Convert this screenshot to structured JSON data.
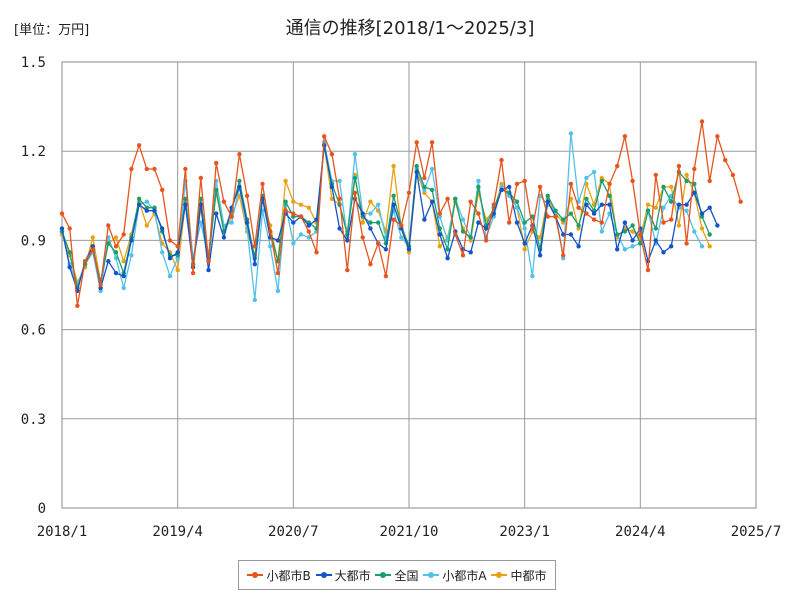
{
  "chart_data": {
    "type": "line",
    "title": "通信の推移[2018/1～2025/3]",
    "unit_label": "[単位：万円]",
    "xlabel": "",
    "ylabel": "",
    "ylim": [
      0,
      1.5
    ],
    "y_ticks": [
      "0",
      "0.3",
      "0.6",
      "0.9",
      "1.2",
      "1.5"
    ],
    "x_ticks": [
      "2018/1",
      "2019/4",
      "2020/7",
      "2021/10",
      "2023/1",
      "2024/4",
      "2025/7"
    ],
    "grid": true,
    "legend_position": "bottom",
    "x_start": "2018/1",
    "x_end": "2025/7",
    "series": [
      {
        "name": "小都市B",
        "color": "#e8541c",
        "values": [
          0.99,
          0.94,
          0.68,
          0.83,
          0.87,
          0.75,
          0.95,
          0.88,
          0.92,
          1.14,
          1.22,
          1.14,
          1.14,
          1.07,
          0.9,
          0.88,
          1.14,
          0.79,
          1.11,
          0.83,
          1.16,
          1.03,
          0.98,
          1.19,
          1.05,
          0.88,
          1.09,
          0.93,
          0.79,
          1.0,
          0.99,
          0.98,
          0.93,
          0.86,
          1.25,
          1.19,
          1.04,
          0.8,
          1.06,
          0.91,
          0.82,
          0.89,
          0.78,
          0.97,
          0.95,
          1.06,
          1.23,
          1.11,
          1.23,
          0.99,
          1.04,
          0.92,
          0.85,
          1.03,
          0.99,
          0.9,
          1.02,
          1.17,
          0.96,
          1.09,
          1.1,
          0.94,
          1.08,
          0.98,
          0.98,
          0.85,
          1.09,
          1.01,
          0.99,
          0.97,
          0.96,
          1.09,
          1.15,
          1.25,
          1.1,
          0.92,
          0.8,
          1.12,
          0.96,
          0.97,
          1.15,
          0.89,
          1.14,
          1.3,
          1.1,
          1.25,
          1.17,
          1.12,
          1.03
        ]
      },
      {
        "name": "大都市",
        "color": "#1553c8",
        "values": [
          0.94,
          0.81,
          0.73,
          0.83,
          0.88,
          0.74,
          0.83,
          0.79,
          0.78,
          0.9,
          1.02,
          1.0,
          1.0,
          0.94,
          0.84,
          0.86,
          1.02,
          0.81,
          1.02,
          0.8,
          0.99,
          0.91,
          1.01,
          1.08,
          0.96,
          0.82,
          1.04,
          0.91,
          0.9,
          0.99,
          0.96,
          0.98,
          0.95,
          0.97,
          1.22,
          1.08,
          0.94,
          0.9,
          1.04,
          0.99,
          0.94,
          0.89,
          0.87,
          1.02,
          0.94,
          0.87,
          1.13,
          0.97,
          1.03,
          0.92,
          0.84,
          0.93,
          0.87,
          0.86,
          0.96,
          0.94,
          0.99,
          1.07,
          1.08,
          0.96,
          0.89,
          0.95,
          0.85,
          1.03,
          0.98,
          0.92,
          0.92,
          0.88,
          1.02,
          0.99,
          1.02,
          1.02,
          0.87,
          0.96,
          0.9,
          0.94,
          0.83,
          0.9,
          0.86,
          0.88,
          1.02,
          1.02,
          1.06,
          0.99,
          1.01,
          0.95
        ]
      },
      {
        "name": "全国",
        "color": "#1b9e6e",
        "values": [
          0.93,
          0.86,
          0.74,
          0.82,
          0.87,
          0.76,
          0.89,
          0.86,
          0.79,
          0.91,
          1.04,
          1.01,
          1.01,
          0.93,
          0.85,
          0.85,
          1.04,
          0.82,
          1.04,
          0.83,
          1.07,
          0.93,
          1.0,
          1.1,
          0.97,
          0.84,
          1.05,
          0.93,
          0.83,
          1.03,
          0.98,
          0.98,
          0.96,
          0.94,
          1.22,
          1.09,
          1.02,
          0.92,
          1.11,
          0.98,
          0.96,
          0.96,
          0.89,
          1.05,
          0.95,
          0.88,
          1.15,
          1.08,
          1.07,
          0.94,
          0.87,
          1.04,
          0.93,
          0.91,
          1.08,
          0.95,
          1.01,
          1.07,
          1.06,
          1.03,
          0.96,
          0.98,
          0.87,
          1.05,
          1.0,
          0.97,
          0.99,
          0.95,
          1.04,
          1.0,
          1.1,
          1.05,
          0.92,
          0.93,
          0.95,
          0.89,
          1.0,
          0.94,
          1.08,
          1.03,
          1.13,
          1.1,
          1.09,
          0.98,
          0.92
        ]
      },
      {
        "name": "小都市A",
        "color": "#52c2e8",
        "values": [
          0.93,
          0.82,
          0.75,
          0.82,
          0.86,
          0.73,
          0.91,
          0.84,
          0.74,
          0.85,
          1.02,
          1.03,
          1.0,
          0.86,
          0.78,
          0.84,
          1.1,
          0.84,
          0.96,
          0.84,
          1.1,
          0.95,
          0.96,
          1.08,
          0.94,
          0.7,
          1.0,
          0.88,
          0.73,
          1.02,
          0.89,
          0.92,
          0.91,
          0.93,
          1.23,
          1.1,
          1.1,
          0.91,
          1.19,
          0.99,
          0.99,
          1.02,
          0.91,
          1.0,
          0.91,
          0.88,
          1.14,
          1.07,
          1.14,
          0.98,
          0.9,
          1.04,
          0.97,
          0.91,
          1.1,
          0.91,
          0.98,
          1.08,
          1.05,
          1.01,
          0.94,
          0.78,
          1.05,
          1.02,
          1.0,
          0.84,
          1.26,
          1.03,
          1.11,
          1.13,
          0.93,
          0.99,
          0.92,
          0.87,
          0.88,
          0.89,
          1.0,
          0.89,
          1.01,
          1.05,
          1.01,
          1.0,
          0.93,
          0.88
        ]
      },
      {
        "name": "中都市",
        "color": "#e8a314",
        "values": [
          0.92,
          0.85,
          0.76,
          0.81,
          0.91,
          0.76,
          0.89,
          0.91,
          0.83,
          0.92,
          1.03,
          0.95,
          0.99,
          0.89,
          0.86,
          0.8,
          1.03,
          0.82,
          1.01,
          0.85,
          1.06,
          0.93,
          0.98,
          1.05,
          0.93,
          0.85,
          1.04,
          0.95,
          0.83,
          1.1,
          1.03,
          1.02,
          1.01,
          0.96,
          1.22,
          1.04,
          1.02,
          0.93,
          1.12,
          0.96,
          1.03,
          1.0,
          0.93,
          1.15,
          0.94,
          0.86,
          1.13,
          1.06,
          1.03,
          0.88,
          0.91,
          1.03,
          0.94,
          0.9,
          1.06,
          0.97,
          1.0,
          1.09,
          1.06,
          1.01,
          0.87,
          0.93,
          0.91,
          1.04,
          0.99,
          0.96,
          1.04,
          0.94,
          1.09,
          1.02,
          1.11,
          1.09,
          0.91,
          0.94,
          0.93,
          0.91,
          1.02,
          1.01,
          1.08,
          1.08,
          0.95,
          1.12,
          1.06,
          0.94,
          0.88
        ]
      }
    ]
  }
}
